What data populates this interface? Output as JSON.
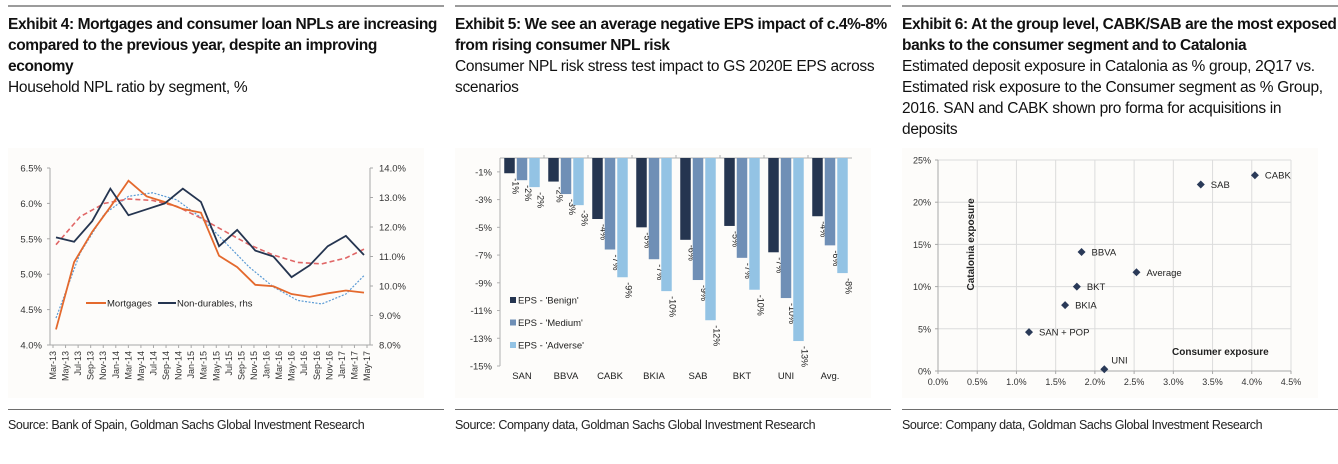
{
  "exhibits": [
    {
      "title": "Exhibit 4: Mortgages and consumer loan NPLs are increasing compared to the previous year, despite an improving economy",
      "subtitle": "Household NPL ratio by segment, %",
      "source": "Source: Bank of Spain, Goldman Sachs Global Investment Research"
    },
    {
      "title": "Exhibit 5: We see an average negative EPS impact of c.4%-8% from rising consumer NPL risk",
      "subtitle": "Consumer NPL risk stress test impact to GS 2020E EPS across scenarios",
      "source": "Source: Company data, Goldman Sachs Global Investment Research"
    },
    {
      "title": "Exhibit 6: At the group level, CABK/SAB are the most exposed banks to the consumer segment and to Catalonia",
      "subtitle": "Estimated deposit exposure in Catalonia as % group, 2Q17 vs. Estimated risk exposure to the Consumer segment as % Group, 2016. SAN and CABK shown pro forma for acquisitions in deposits",
      "source": "Source: Company data, Goldman Sachs Global Investment Research"
    }
  ],
  "colors": {
    "mortgages": "#e4692d",
    "nondurables": "#253550",
    "trend_mortgages": "#5b9bd5",
    "trend_nondurables": "#e06666",
    "benign": "#253550",
    "medium": "#6f8fb6",
    "adverse": "#93c3e4",
    "marker": "#2a3a58"
  },
  "chart_data": [
    {
      "type": "line",
      "x_labels": [
        "Mar-13",
        "May-13",
        "Jul-13",
        "Sep-13",
        "Nov-13",
        "Jan-14",
        "Mar-14",
        "May-14",
        "Jul-14",
        "Sep-14",
        "Nov-14",
        "Jan-15",
        "Mar-15",
        "May-15",
        "Jul-15",
        "Sep-15",
        "Nov-15",
        "Jan-16",
        "Mar-16",
        "May-16",
        "Jul-16",
        "Sep-16",
        "Nov-16",
        "Jan-17",
        "Mar-17",
        "May-17"
      ],
      "x_index_range": [
        0,
        25.5
      ],
      "left_axis": {
        "ylim": [
          4.0,
          6.5
        ],
        "ticks": [
          "4.0%",
          "4.5%",
          "5.0%",
          "5.5%",
          "6.0%",
          "6.5%"
        ],
        "tick_values": [
          4.0,
          4.5,
          5.0,
          5.5,
          6.0,
          6.5
        ]
      },
      "right_axis": {
        "ylim": [
          8.0,
          14.0
        ],
        "ticks": [
          "8.0%",
          "9.0%",
          "10.0%",
          "11.0%",
          "12.0%",
          "13.0%",
          "14.0%"
        ],
        "tick_values": [
          8,
          9,
          10,
          11,
          12,
          13,
          14
        ]
      },
      "series": [
        {
          "name": "Mortgages",
          "axis": "left",
          "x": [
            0,
            1.5,
            3,
            4.5,
            6,
            7.5,
            9,
            10.5,
            12,
            13.5,
            15,
            16.5,
            18,
            19.5,
            21,
            22.5,
            24,
            25.5
          ],
          "values": [
            4.22,
            5.17,
            5.6,
            5.95,
            6.32,
            6.1,
            6.02,
            5.92,
            5.87,
            5.26,
            5.1,
            4.85,
            4.83,
            4.72,
            4.68,
            4.73,
            4.77,
            4.74
          ]
        },
        {
          "name": "Non-durables, rhs",
          "axis": "right",
          "x": [
            0,
            1.5,
            3,
            4.5,
            6,
            7.5,
            9,
            10.5,
            12,
            13.5,
            15,
            16.5,
            18,
            19.5,
            21,
            22.5,
            24,
            25.5
          ],
          "values": [
            11.65,
            11.5,
            12.2,
            13.3,
            12.4,
            12.6,
            12.8,
            13.3,
            12.85,
            11.35,
            11.9,
            11.2,
            11.0,
            10.3,
            10.7,
            11.35,
            11.7,
            11.05
          ]
        }
      ],
      "trendlines": [
        {
          "name": "Mortgages trend",
          "axis": "left",
          "style": "dotted",
          "x": [
            0,
            2,
            4,
            6,
            8,
            10,
            12,
            14,
            16,
            18,
            20,
            22,
            24,
            25.5
          ],
          "values": [
            4.38,
            5.3,
            5.85,
            6.1,
            6.15,
            6.05,
            5.8,
            5.45,
            5.1,
            4.82,
            4.63,
            4.58,
            4.72,
            4.98
          ]
        },
        {
          "name": "Non-durables trend",
          "axis": "right",
          "style": "dashed",
          "x": [
            0,
            2,
            4,
            6,
            8,
            10,
            12,
            14,
            16,
            18,
            20,
            22,
            24,
            25.5
          ],
          "values": [
            11.4,
            12.35,
            12.8,
            12.95,
            12.9,
            12.7,
            12.3,
            11.85,
            11.4,
            11.05,
            10.8,
            10.75,
            10.95,
            11.25
          ]
        }
      ],
      "legend": [
        "Mortgages",
        "Non-durables, rhs"
      ],
      "legend_position": "lower-center"
    },
    {
      "type": "bar",
      "categories": [
        "SAN",
        "BBVA",
        "CABK",
        "BKIA",
        "SAB",
        "BKT",
        "UNI",
        "Avg."
      ],
      "series": [
        {
          "name": "EPS - 'Benign'",
          "values": [
            -1.1,
            -1.7,
            -4.4,
            -5.0,
            -5.9,
            -4.9,
            -6.8,
            -4.2
          ],
          "labels": [
            "-1%",
            "-2%",
            "-4%",
            "-5%",
            "-6%",
            "-5%",
            "-7%",
            "-4%"
          ]
        },
        {
          "name": "EPS - 'Medium'",
          "values": [
            -1.6,
            -2.6,
            -6.6,
            -7.3,
            -8.8,
            -7.2,
            -10.1,
            -6.3
          ],
          "labels": [
            "-2%",
            "-3%",
            "-7%",
            "-7%",
            "-9%",
            "-7%",
            "-10%",
            "-6%"
          ]
        },
        {
          "name": "EPS - 'Adverse'",
          "values": [
            -2.1,
            -3.4,
            -8.6,
            -9.6,
            -11.7,
            -9.5,
            -13.2,
            -8.3
          ],
          "labels": [
            "-2%",
            "-3%",
            "-9%",
            "-10%",
            "-12%",
            "-10%",
            "-13%",
            "-8%"
          ]
        }
      ],
      "ylim": [
        -15,
        0
      ],
      "y_ticks": [
        "-1%",
        "-3%",
        "-5%",
        "-7%",
        "-9%",
        "-11%",
        "-13%",
        "-15%"
      ],
      "y_tick_values": [
        -1,
        -3,
        -5,
        -7,
        -9,
        -11,
        -13,
        -15
      ],
      "legend_position": "lower-left"
    },
    {
      "type": "scatter",
      "xlabel": "Consumer exposure",
      "ylabel": "Catalonia exposure",
      "xlim": [
        0,
        4.5
      ],
      "ylim": [
        0,
        25
      ],
      "x_ticks": [
        "0.0%",
        "0.5%",
        "1.0%",
        "1.5%",
        "2.0%",
        "2.5%",
        "3.0%",
        "3.5%",
        "4.0%",
        "4.5%"
      ],
      "x_tick_values": [
        0,
        0.5,
        1,
        1.5,
        2,
        2.5,
        3,
        3.5,
        4,
        4.5
      ],
      "y_ticks": [
        "0%",
        "5%",
        "10%",
        "15%",
        "20%",
        "25%"
      ],
      "y_tick_values": [
        0,
        5,
        10,
        15,
        20,
        25
      ],
      "grid": true,
      "points": [
        {
          "label": "CABK",
          "x": 4.04,
          "y": 23.2
        },
        {
          "label": "SAB",
          "x": 3.35,
          "y": 22.1
        },
        {
          "label": "BBVA",
          "x": 1.83,
          "y": 14.1
        },
        {
          "label": "Average",
          "x": 2.53,
          "y": 11.7
        },
        {
          "label": "BKT",
          "x": 1.77,
          "y": 10.0
        },
        {
          "label": "BKIA",
          "x": 1.62,
          "y": 7.8
        },
        {
          "label": "SAN + POP",
          "x": 1.16,
          "y": 4.6
        },
        {
          "label": "UNI",
          "x": 2.12,
          "y": 0.2
        }
      ]
    }
  ]
}
